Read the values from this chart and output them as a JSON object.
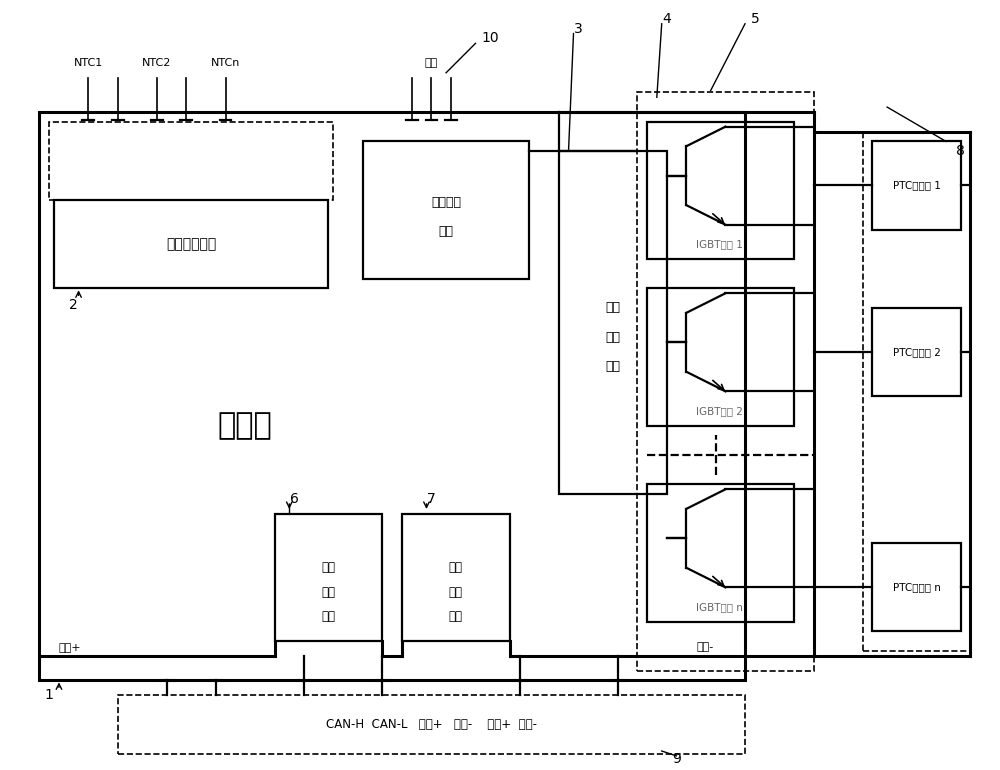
{
  "fig_width": 10.0,
  "fig_height": 7.7,
  "dpi": 100,
  "bg_color": "#ffffff",
  "line_color": "#000000",
  "labels": {
    "controller": "控制器",
    "temp_module": "温度采集模块",
    "insulation_line1": "绝缘检测",
    "insulation_line2": "模块",
    "switch_line1": "开关",
    "switch_line2": "驱动",
    "switch_line3": "模块",
    "voltage_line1": "电压",
    "voltage_line2": "采集",
    "voltage_line3": "模块",
    "current_line1": "电流",
    "current_line2": "采集",
    "current_line3": "模块",
    "igbt1": "IGBT模块 1",
    "igbt2": "IGBT模块 2",
    "igbtn": "IGBT模块 n",
    "ptc1": "PTC发热芯 1",
    "ptc2": "PTC发热芯 2",
    "ptcn": "PTC发热芯 n",
    "high_plus": "高压+",
    "high_minus": "高压-",
    "connector": "CAN-H  CAN-L   低压+   低压-    高压+  高压-",
    "ground": "地线",
    "ntc1": "NTC1",
    "ntc2": "NTC2",
    "ntcn": "NTCn",
    "label1": "1",
    "label2": "2",
    "label3": "3",
    "label4": "4",
    "label5": "5",
    "label6": "6",
    "label7": "7",
    "label8": "8",
    "label9": "9",
    "label10": "10"
  }
}
